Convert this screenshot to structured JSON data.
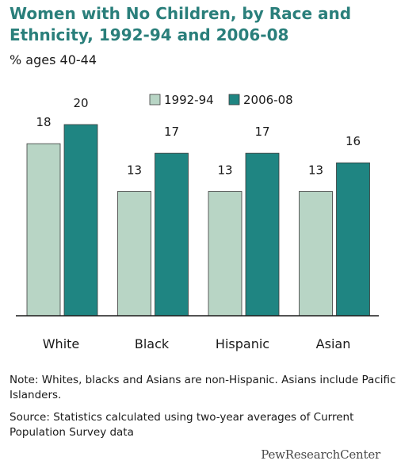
{
  "header": {
    "title": "Women with No Children, by Race and Ethnicity, 1992-94 and 2006-08",
    "subtitle": "% ages 40-44"
  },
  "footer": {
    "note": "Note: Whites, blacks and Asians are non-Hispanic. Asians include Pacific Islanders.",
    "source": "Source:  Statistics calculated using two-year averages of Current Population Survey data",
    "logo": "PewResearchCenter"
  },
  "chart_data": {
    "type": "bar",
    "title": "Women with No Children, by Race and Ethnicity, 1992-94 and 2006-08",
    "subtitle": "% ages 40-44",
    "categories": [
      "White",
      "Black",
      "Hispanic",
      "Asian"
    ],
    "series": [
      {
        "name": "1992-94",
        "values": [
          18,
          13,
          13,
          13
        ],
        "color": "#b8d5c5"
      },
      {
        "name": "2006-08",
        "values": [
          20,
          17,
          17,
          16
        ],
        "color": "#1f8582"
      }
    ],
    "ylim": [
      0,
      20
    ],
    "grid": false,
    "legend": "top-right",
    "data_labels": true
  }
}
